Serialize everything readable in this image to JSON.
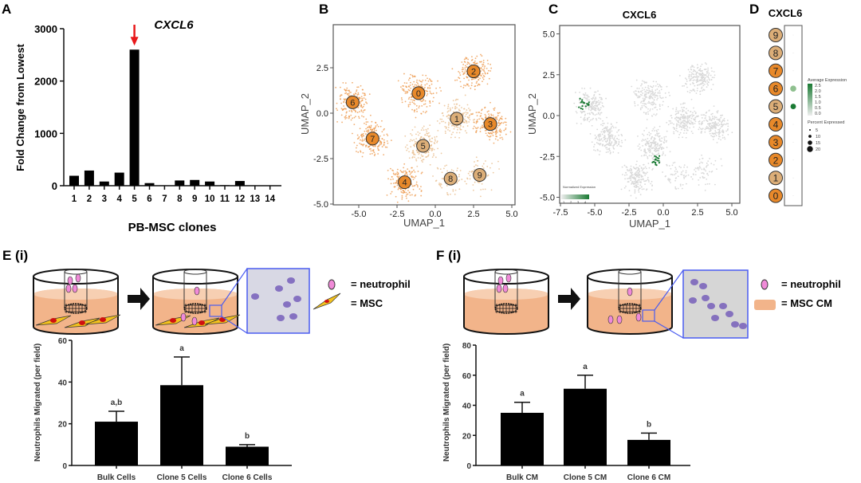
{
  "panels": {
    "A": "A",
    "B": "B",
    "C": "C",
    "D": "D",
    "E": "E (i)",
    "F": "F (i)"
  },
  "colors": {
    "bar": "#000000",
    "arrow": "#e8191b",
    "cluster_dark": "#e8892a",
    "cluster_light": "#dcae78",
    "umap_points": "#ee9a4e",
    "grey_points": "#d9d9d9",
    "expr_green": "#1a7a33",
    "medium": "#f2b48a",
    "neutrophil": "#f08ad8",
    "micrograph_border": "#4a5cf0"
  },
  "chart_data": [
    {
      "id": "A",
      "type": "bar",
      "title": "CXCL6",
      "xlabel": "PB-MSC clones",
      "ylabel": "Fold Change from Lowest",
      "ylim": [
        0,
        3000
      ],
      "yticks": [
        0,
        1000,
        2000,
        3000
      ],
      "categories": [
        "1",
        "2",
        "3",
        "4",
        "5",
        "6",
        "7",
        "8",
        "9",
        "10",
        "11",
        "12",
        "13",
        "14"
      ],
      "values": [
        190,
        290,
        80,
        250,
        2600,
        50,
        5,
        100,
        110,
        80,
        10,
        90,
        0,
        0
      ],
      "annotation": "red arrow above clone 5"
    },
    {
      "id": "B",
      "type": "scatter",
      "xlabel": "UMAP_1",
      "ylabel": "UMAP_2",
      "xlim": [
        -6.5,
        5
      ],
      "ylim": [
        -5,
        4.5
      ],
      "xticks": [
        "-5.0",
        "-2.5",
        "0.0",
        "2.5",
        "5.0"
      ],
      "yticks": [
        "-5.0",
        "-2.5",
        "0.0",
        "2.5"
      ],
      "clusters": [
        {
          "label": "0",
          "x": -1.1,
          "y": 1.1,
          "shade": "dark"
        },
        {
          "label": "1",
          "x": 1.4,
          "y": -0.3,
          "shade": "light"
        },
        {
          "label": "2",
          "x": 2.5,
          "y": 2.3,
          "shade": "dark"
        },
        {
          "label": "3",
          "x": 3.6,
          "y": -0.6,
          "shade": "dark"
        },
        {
          "label": "4",
          "x": -2.0,
          "y": -3.8,
          "shade": "dark"
        },
        {
          "label": "5",
          "x": -0.8,
          "y": -1.8,
          "shade": "light"
        },
        {
          "label": "6",
          "x": -5.4,
          "y": 0.6,
          "shade": "dark"
        },
        {
          "label": "7",
          "x": -4.1,
          "y": -1.4,
          "shade": "dark"
        },
        {
          "label": "8",
          "x": 1.0,
          "y": -3.6,
          "shade": "light"
        },
        {
          "label": "9",
          "x": 2.9,
          "y": -3.4,
          "shade": "light"
        }
      ]
    },
    {
      "id": "C",
      "type": "scatter",
      "title": "CXCL6",
      "xlabel": "UMAP_1",
      "ylabel": "UMAP_2",
      "xlim": [
        -7.5,
        5
      ],
      "ylim": [
        -5,
        5
      ],
      "xticks": [
        "-7.5",
        "-5.0",
        "-2.5",
        "0.0",
        "2.5",
        "5.0"
      ],
      "yticks": [
        "-5.0",
        "-2.5",
        "0.0",
        "2.5",
        "5.0"
      ],
      "legend": {
        "title": "Normalized Expression",
        "ticks": [
          "1",
          "2",
          "3",
          "4"
        ],
        "placement": "bottom-left"
      },
      "expressing_regions": [
        {
          "x": -5.8,
          "y": 0.7
        },
        {
          "x": -0.5,
          "y": -2.7
        }
      ]
    },
    {
      "id": "D",
      "type": "dot",
      "title": "CXCL6",
      "clusters": [
        "9",
        "8",
        "7",
        "6",
        "5",
        "4",
        "3",
        "2",
        "1",
        "0"
      ],
      "dots": [
        {
          "cluster": "6",
          "avg_expression": 0.8,
          "percent": 15
        },
        {
          "cluster": "5",
          "avg_expression": 2.5,
          "percent": 12
        }
      ],
      "legend_avg_title": "Average Expression",
      "legend_avg_ticks": [
        "2.5",
        "2.0",
        "1.5",
        "1.0",
        "0.5",
        "0.0"
      ],
      "legend_pct_title": "Percent Expressed",
      "legend_pct_ticks": [
        "5",
        "10",
        "15",
        "20"
      ]
    },
    {
      "id": "E",
      "type": "bar",
      "ylabel": "Neutrophils Migrated (per field)",
      "ylim": [
        0,
        60
      ],
      "yticks": [
        0,
        20,
        40,
        60
      ],
      "categories": [
        "Bulk Cells",
        "Clone 5 Cells",
        "Clone 6 Cells"
      ],
      "values": [
        21,
        38.5,
        9
      ],
      "errors": [
        5,
        13.5,
        1
      ],
      "sig_labels": [
        "a,b",
        "a",
        "b"
      ]
    },
    {
      "id": "F",
      "type": "bar",
      "ylabel": "Neutrophils Migrated (per field)",
      "ylim": [
        0,
        80
      ],
      "yticks": [
        0,
        20,
        40,
        60,
        80
      ],
      "categories": [
        "Bulk CM",
        "Clone 5 CM",
        "Clone 6 CM"
      ],
      "values": [
        35,
        51,
        17
      ],
      "errors": [
        7,
        9,
        4.5
      ],
      "sig_labels": [
        "a",
        "a",
        "b"
      ]
    }
  ],
  "legendE": {
    "neutrophil": "= neutrophil",
    "msc": "= MSC"
  },
  "legendF": {
    "neutrophil": "= neutrophil",
    "msc_cm": "= MSC CM"
  }
}
